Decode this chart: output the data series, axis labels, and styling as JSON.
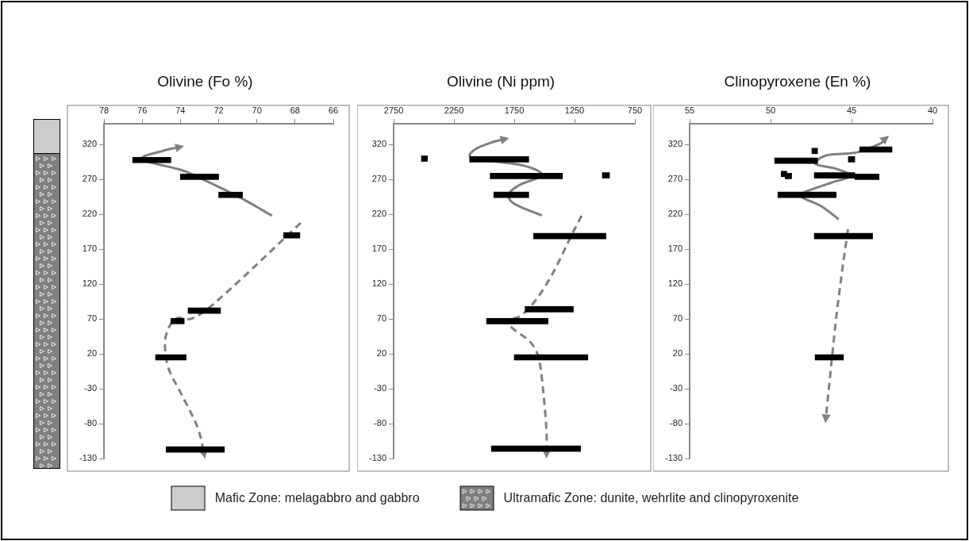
{
  "chart_data": [
    {
      "type": "bar",
      "orientation": "horizontal",
      "title": "Olivine (Fo %)",
      "xlim": [
        78,
        66
      ],
      "xticks": [
        78,
        76,
        74,
        72,
        70,
        68,
        66
      ],
      "ylim": [
        -130,
        350
      ],
      "yticks": [
        -130,
        -80,
        -30,
        20,
        70,
        120,
        170,
        220,
        270,
        320
      ],
      "grid": false,
      "annotations": [
        "Mafic Zone: melagabbro and gabbro",
        "Ultramafic Zone: dunite, wehrlite and clinopyroxenite"
      ],
      "color": "#000000",
      "x": [
        298,
        274,
        248,
        190,
        82,
        67,
        15,
        -117
      ],
      "base": [
        74.5,
        72,
        70.75,
        67.75,
        71.9,
        73.8,
        73.7,
        71.7
      ],
      "values": [
        2,
        2,
        1.25,
        0.85,
        1.7,
        0.7,
        1.6,
        3.05
      ]
    },
    {
      "type": "bar",
      "orientation": "horizontal",
      "title": "Olivine (Ni ppm)",
      "xlim": [
        2750,
        750
      ],
      "xticks": [
        2750,
        2250,
        1750,
        1250,
        750
      ],
      "ylim": [
        -130,
        350
      ],
      "yticks": [
        -130,
        -80,
        -30,
        20,
        70,
        120,
        170,
        220,
        270,
        320
      ],
      "grid": false,
      "color": "#000000",
      "x": [
        300,
        299,
        276,
        275,
        248,
        189,
        84,
        67,
        15,
        -116
      ],
      "base": [
        2470,
        1630,
        960,
        1350,
        1630,
        990,
        1260,
        1470,
        1140,
        1200
      ],
      "values": [
        50,
        490,
        60,
        600,
        290,
        600,
        400,
        510,
        610,
        740
      ]
    },
    {
      "type": "bar",
      "orientation": "horizontal",
      "title": "Clinopyroxene (En %)",
      "xlim": [
        55,
        40
      ],
      "xticks": [
        55,
        50,
        45,
        40
      ],
      "ylim": [
        -130,
        350
      ],
      "yticks": [
        -130,
        -80,
        -30,
        20,
        70,
        120,
        170,
        220,
        270,
        320
      ],
      "grid": false,
      "color": "#000000",
      "x": [
        313,
        311,
        299,
        297,
        278,
        276,
        275,
        274,
        248,
        189,
        15
      ],
      "base": [
        42.5,
        47.1,
        44.8,
        47.1,
        49,
        44.8,
        48.7,
        43.3,
        45.95,
        43.7,
        45.5
      ],
      "values": [
        2,
        0.35,
        0.4,
        2.65,
        0.35,
        2.5,
        0.4,
        1.5,
        3.6,
        3.6,
        1.75
      ]
    }
  ]
}
